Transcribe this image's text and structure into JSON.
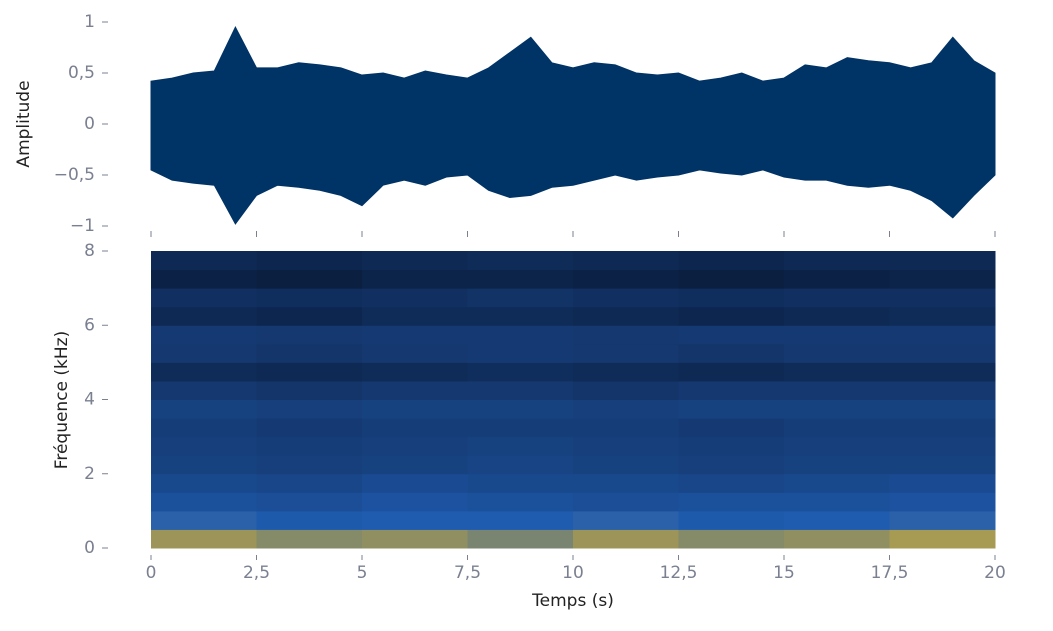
{
  "chart_data": [
    {
      "type": "area-envelope",
      "ylabel": "Amplitude",
      "color": "#003366",
      "x": [
        0,
        0.5,
        1,
        1.5,
        2,
        2.5,
        3,
        3.5,
        4,
        4.5,
        5,
        5.5,
        6,
        6.5,
        7,
        7.5,
        8,
        8.5,
        9,
        9.5,
        10,
        10.5,
        11,
        11.5,
        12,
        12.5,
        13,
        13.5,
        14,
        14.5,
        15,
        15.5,
        16,
        16.5,
        17,
        17.5,
        18,
        18.5,
        19,
        19.5,
        20
      ],
      "series": [
        {
          "values": [
            0.42,
            0.45,
            0.5,
            0.52,
            0.95,
            0.55,
            0.55,
            0.6,
            0.58,
            0.55,
            0.48,
            0.5,
            0.45,
            0.52,
            0.48,
            0.45,
            0.55,
            0.7,
            0.85,
            0.6,
            0.55,
            0.6,
            0.58,
            0.5,
            0.48,
            0.5,
            0.42,
            0.45,
            0.5,
            0.42,
            0.45,
            0.58,
            0.55,
            0.65,
            0.62,
            0.6,
            0.55,
            0.6,
            0.85,
            0.62,
            0.5
          ]
        },
        {
          "values": [
            -0.45,
            -0.55,
            -0.58,
            -0.6,
            -0.98,
            -0.7,
            -0.6,
            -0.62,
            -0.65,
            -0.7,
            -0.8,
            -0.6,
            -0.55,
            -0.6,
            -0.52,
            -0.5,
            -0.65,
            -0.72,
            -0.7,
            -0.62,
            -0.6,
            -0.55,
            -0.5,
            -0.55,
            -0.52,
            -0.5,
            -0.45,
            -0.48,
            -0.5,
            -0.45,
            -0.52,
            -0.55,
            -0.55,
            -0.6,
            -0.62,
            -0.6,
            -0.65,
            -0.75,
            -0.92,
            -0.7,
            -0.5
          ]
        }
      ],
      "xlim": [
        0,
        20
      ],
      "ylim": [
        -1,
        1
      ],
      "yticks": [
        {
          "value": -1,
          "label": "−1"
        },
        {
          "value": -0.5,
          "label": "−0,5"
        },
        0,
        {
          "value": 0.5,
          "label": "0,5"
        },
        1
      ]
    },
    {
      "type": "heatmap",
      "xlabel": "Temps (s)",
      "ylabel": "Fréquence (kHz)",
      "x": [
        0,
        2.5,
        5,
        7.5,
        10,
        12.5,
        15,
        17.5,
        20
      ],
      "y": [
        0,
        0.5,
        1,
        1.5,
        2,
        2.5,
        3,
        3.5,
        4,
        4.5,
        5,
        5.5,
        6,
        6.5,
        7,
        7.5,
        8
      ],
      "values": [
        [
          -44,
          -46,
          -45,
          -47,
          -44,
          -46,
          -45,
          -43
        ],
        [
          -54,
          -56,
          -55,
          -55,
          -54,
          -56,
          -55,
          -54
        ],
        [
          -60,
          -61,
          -59,
          -60,
          -61,
          -60,
          -60,
          -59
        ],
        [
          -63,
          -64,
          -62,
          -63,
          -63,
          -64,
          -63,
          -62
        ],
        [
          -66,
          -67,
          -66,
          -65,
          -66,
          -67,
          -66,
          -66
        ],
        [
          -67,
          -68,
          -67,
          -66,
          -67,
          -68,
          -67,
          -67
        ],
        [
          -68,
          -69,
          -68,
          -68,
          -68,
          -69,
          -68,
          -68
        ],
        [
          -66,
          -67,
          -66,
          -66,
          -67,
          -66,
          -66,
          -66
        ],
        [
          -70,
          -71,
          -70,
          -70,
          -71,
          -70,
          -70,
          -70
        ],
        [
          -75,
          -76,
          -75,
          -74,
          -75,
          -76,
          -75,
          -75
        ],
        [
          -70,
          -71,
          -70,
          -69,
          -70,
          -71,
          -70,
          -70
        ],
        [
          -69,
          -70,
          -69,
          -69,
          -70,
          -69,
          -69,
          -69
        ],
        [
          -76,
          -77,
          -75,
          -75,
          -76,
          -77,
          -76,
          -75
        ],
        [
          -73,
          -74,
          -73,
          -72,
          -73,
          -74,
          -73,
          -73
        ],
        [
          -79,
          -80,
          -78,
          -78,
          -79,
          -80,
          -79,
          -78
        ],
        [
          -76,
          -77,
          -76,
          -75,
          -76,
          -77,
          -76,
          -76
        ]
      ],
      "colormap": [
        {
          "value": -85,
          "color": "#06122a"
        },
        {
          "value": -70,
          "color": "#14386f"
        },
        {
          "value": -55,
          "color": "#1f5cb0"
        },
        {
          "value": -40,
          "color": "#c9a93a"
        }
      ],
      "xlim": [
        0,
        20
      ],
      "ylim": [
        0,
        8
      ],
      "xticks": [
        0,
        {
          "value": 2.5,
          "label": "2,5"
        },
        5,
        {
          "value": 7.5,
          "label": "7,5"
        },
        10,
        {
          "value": 12.5,
          "label": "12,5"
        },
        15,
        {
          "value": 17.5,
          "label": "17,5"
        },
        20
      ],
      "yticks": [
        0,
        2,
        4,
        6,
        8
      ]
    }
  ]
}
